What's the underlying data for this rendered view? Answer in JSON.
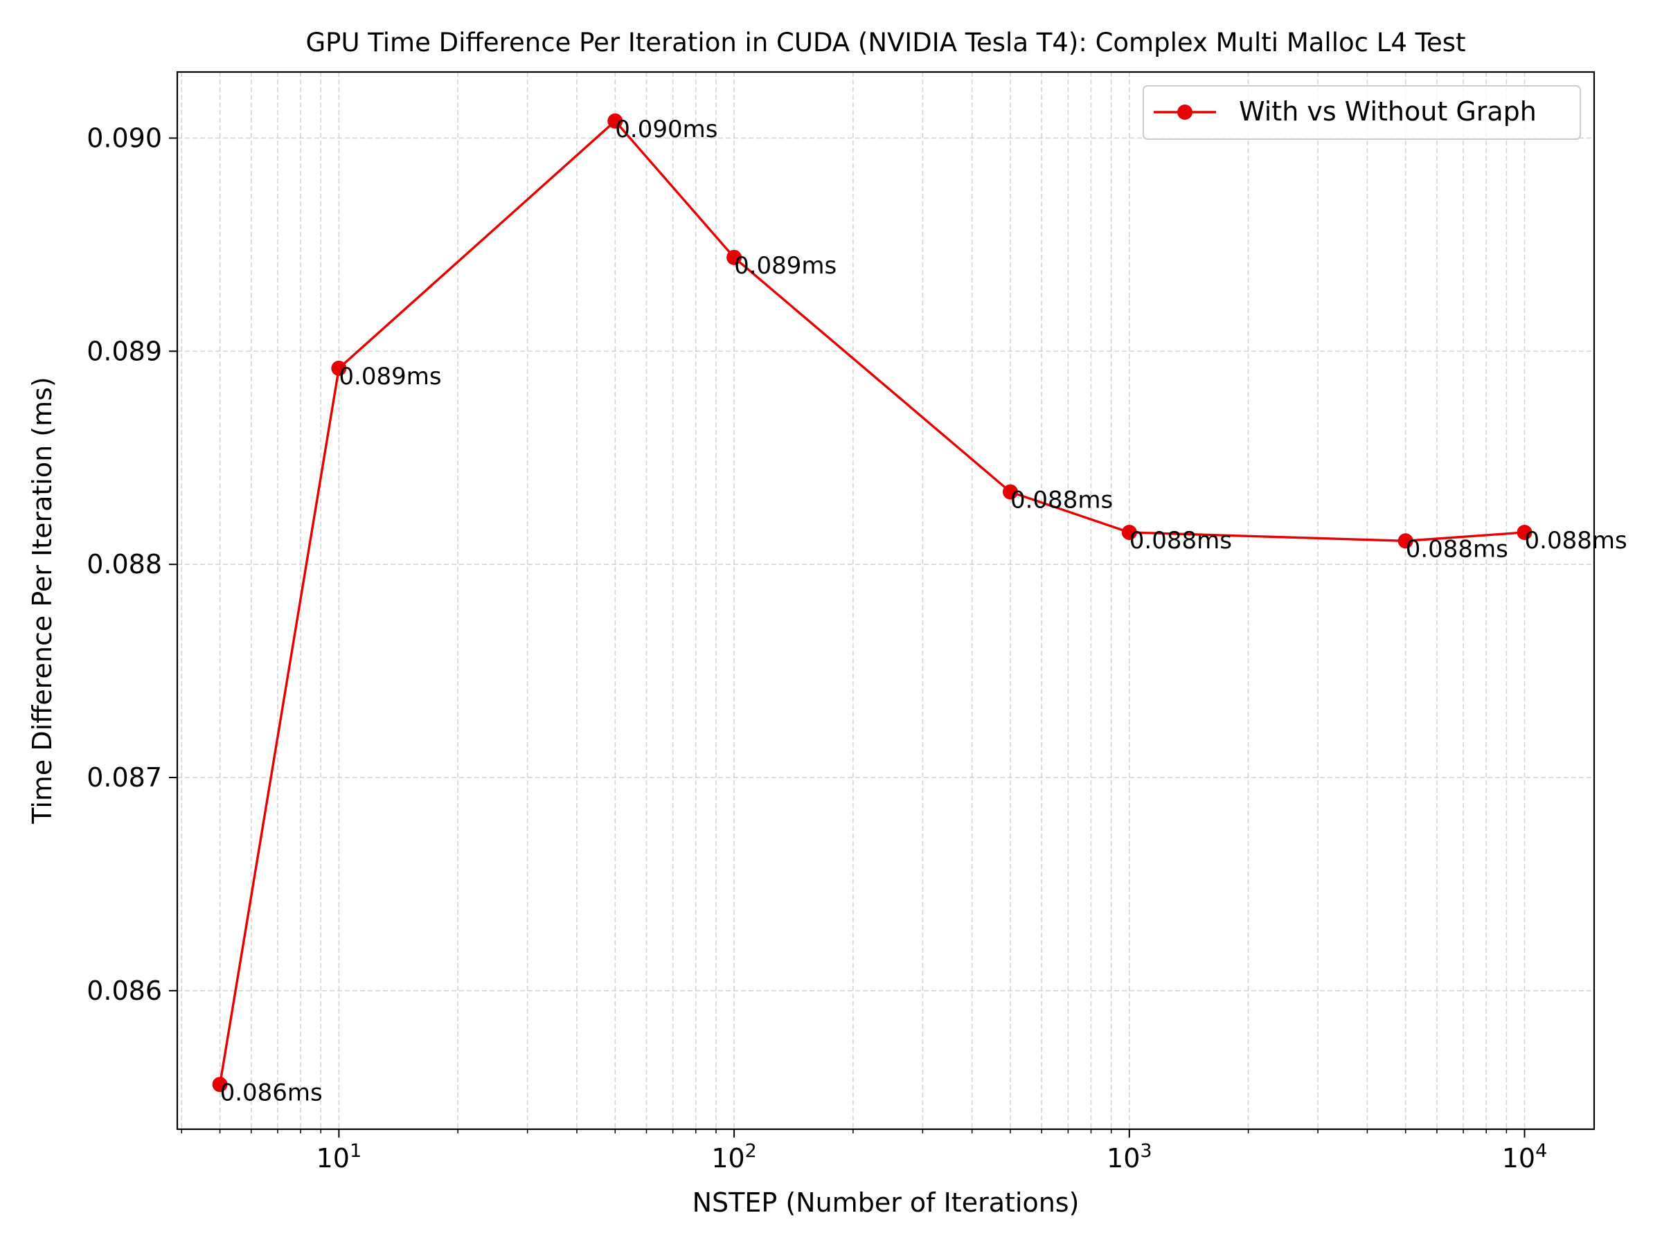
{
  "chart_data": {
    "type": "line",
    "title": "GPU Time Difference Per Iteration in CUDA (NVIDIA Tesla T4): Complex Multi Malloc L4 Test",
    "xlabel": "NSTEP (Number of Iterations)",
    "ylabel": "Time Difference Per Iteration (ms)",
    "x_scale": "log",
    "xlim": [
      3.9,
      15000
    ],
    "ylim": [
      0.08535,
      0.09031
    ],
    "grid": true,
    "grid_style": "dashed",
    "legend_position": "upper right",
    "x_major_ticks": [
      {
        "value": 10,
        "base": "10",
        "exp": "1"
      },
      {
        "value": 100,
        "base": "10",
        "exp": "2"
      },
      {
        "value": 1000,
        "base": "10",
        "exp": "3"
      },
      {
        "value": 10000,
        "base": "10",
        "exp": "4"
      }
    ],
    "y_ticks": [
      {
        "value": 0.086,
        "label": "0.086"
      },
      {
        "value": 0.087,
        "label": "0.087"
      },
      {
        "value": 0.088,
        "label": "0.088"
      },
      {
        "value": 0.089,
        "label": "0.089"
      },
      {
        "value": 0.09,
        "label": "0.090"
      }
    ],
    "series": [
      {
        "name": "With vs Without Graph",
        "color": "#e60000",
        "marker": "circle",
        "points": [
          {
            "x": 5,
            "y": 0.08556,
            "label": "0.086ms"
          },
          {
            "x": 10,
            "y": 0.08892,
            "label": "0.089ms"
          },
          {
            "x": 50,
            "y": 0.09008,
            "label": "0.090ms"
          },
          {
            "x": 100,
            "y": 0.08944,
            "label": "0.089ms"
          },
          {
            "x": 500,
            "y": 0.08834,
            "label": "0.088ms"
          },
          {
            "x": 1000,
            "y": 0.08815,
            "label": "0.088ms"
          },
          {
            "x": 5000,
            "y": 0.08811,
            "label": "0.088ms"
          },
          {
            "x": 10000,
            "y": 0.08815,
            "label": "0.088ms"
          }
        ]
      }
    ]
  }
}
